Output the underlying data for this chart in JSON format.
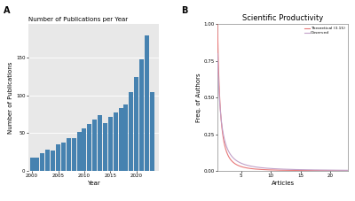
{
  "panel_a_title": "Number of Publications per Year",
  "panel_a_xlabel": "Year",
  "panel_a_ylabel": "Number of Publications",
  "years": [
    2000,
    2001,
    2002,
    2003,
    2004,
    2005,
    2006,
    2007,
    2008,
    2009,
    2010,
    2011,
    2012,
    2013,
    2014,
    2015,
    2016,
    2017,
    2018,
    2019,
    2020,
    2021,
    2022,
    2023
  ],
  "publications": [
    18,
    18,
    24,
    28,
    27,
    35,
    38,
    44,
    44,
    52,
    57,
    62,
    68,
    74,
    64,
    72,
    78,
    84,
    88,
    105,
    125,
    148,
    180,
    105
  ],
  "bar_color": "#4682b0",
  "panel_a_bg": "#e8e8e8",
  "panel_b_title": "Scientific Productivity",
  "panel_b_xlabel": "Articles",
  "panel_b_ylabel": "Freq. of Authors",
  "panel_b_bg": "#ffffff",
  "theoretical_color": "#e87878",
  "observed_color": "#c0a0c8",
  "legend_labels": [
    "Theoretical (3.15)",
    "Observed"
  ],
  "label_a": "A",
  "label_b": "B",
  "yticks_a": [
    0,
    50,
    100,
    150
  ],
  "ytick_labels_a": [
    "0",
    "50",
    "100",
    "150"
  ],
  "xticks_a": [
    2000,
    2005,
    2010,
    2015,
    2020
  ],
  "xlim_a": [
    1999.3,
    2024.3
  ],
  "ylim_a": [
    0,
    195
  ],
  "xlim_b": [
    1,
    23
  ],
  "ylim_b": [
    0,
    1.0
  ],
  "xticks_b": [
    5,
    10,
    15,
    20
  ],
  "yticks_b": [
    0.0,
    0.25,
    0.5,
    0.75,
    1.0
  ],
  "ytick_labels_b": [
    "0.00",
    "0.25",
    "0.50",
    "0.75",
    "1.00"
  ]
}
